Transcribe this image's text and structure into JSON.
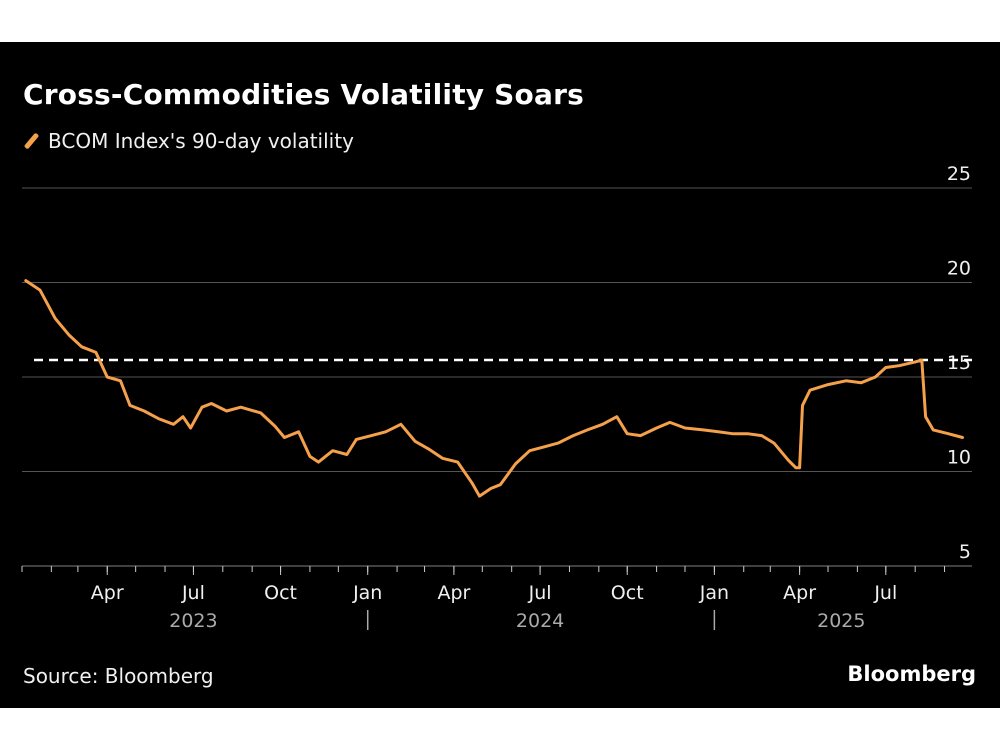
{
  "chart_data": {
    "type": "line",
    "title": "Cross-Commodities Volatility Soars",
    "legend": "BCOM Index's 90-day volatility",
    "ylim": [
      5,
      25
    ],
    "y_ticks": [
      5,
      10,
      15,
      20,
      25
    ],
    "x_range": [
      "2023-01-01",
      "2025-09-30"
    ],
    "x_month_ticks": [
      {
        "date": "2023-04-01",
        "label": "Apr"
      },
      {
        "date": "2023-07-01",
        "label": "Jul"
      },
      {
        "date": "2023-10-01",
        "label": "Oct"
      },
      {
        "date": "2024-01-01",
        "label": "Jan"
      },
      {
        "date": "2024-04-01",
        "label": "Apr"
      },
      {
        "date": "2024-07-01",
        "label": "Jul"
      },
      {
        "date": "2024-10-01",
        "label": "Oct"
      },
      {
        "date": "2025-01-01",
        "label": "Jan"
      },
      {
        "date": "2025-04-01",
        "label": "Apr"
      },
      {
        "date": "2025-07-01",
        "label": "Jul"
      }
    ],
    "x_year_labels": [
      {
        "date": "2023-07-01",
        "label": "2023"
      },
      {
        "date": "2024-07-01",
        "label": "2024"
      },
      {
        "date": "2025-05-15",
        "label": "2025"
      }
    ],
    "year_separators": [
      "2024-01-01",
      "2025-01-01"
    ],
    "reference_line": {
      "value": 15.9,
      "style": "dashed"
    },
    "grid": true,
    "series": [
      {
        "color": "#f5a04a",
        "points": [
          [
            "2023-01-05",
            20.1
          ],
          [
            "2023-01-20",
            19.6
          ],
          [
            "2023-02-05",
            18.1
          ],
          [
            "2023-02-20",
            17.2
          ],
          [
            "2023-03-05",
            16.6
          ],
          [
            "2023-03-20",
            16.3
          ],
          [
            "2023-04-01",
            15.0
          ],
          [
            "2023-04-15",
            14.8
          ],
          [
            "2023-04-25",
            13.5
          ],
          [
            "2023-05-10",
            13.2
          ],
          [
            "2023-05-25",
            12.8
          ],
          [
            "2023-06-10",
            12.5
          ],
          [
            "2023-06-20",
            12.9
          ],
          [
            "2023-06-28",
            12.3
          ],
          [
            "2023-07-10",
            13.4
          ],
          [
            "2023-07-20",
            13.6
          ],
          [
            "2023-08-05",
            13.2
          ],
          [
            "2023-08-20",
            13.4
          ],
          [
            "2023-09-10",
            13.1
          ],
          [
            "2023-09-25",
            12.4
          ],
          [
            "2023-10-05",
            11.8
          ],
          [
            "2023-10-20",
            12.1
          ],
          [
            "2023-11-01",
            10.8
          ],
          [
            "2023-11-10",
            10.5
          ],
          [
            "2023-11-25",
            11.1
          ],
          [
            "2023-12-10",
            10.9
          ],
          [
            "2023-12-20",
            11.7
          ],
          [
            "2024-01-05",
            11.9
          ],
          [
            "2024-01-20",
            12.1
          ],
          [
            "2024-02-05",
            12.5
          ],
          [
            "2024-02-20",
            11.6
          ],
          [
            "2024-03-05",
            11.2
          ],
          [
            "2024-03-20",
            10.7
          ],
          [
            "2024-04-05",
            10.5
          ],
          [
            "2024-04-20",
            9.4
          ],
          [
            "2024-04-28",
            8.7
          ],
          [
            "2024-05-10",
            9.1
          ],
          [
            "2024-05-20",
            9.3
          ],
          [
            "2024-06-05",
            10.4
          ],
          [
            "2024-06-20",
            11.1
          ],
          [
            "2024-07-05",
            11.3
          ],
          [
            "2024-07-20",
            11.5
          ],
          [
            "2024-08-05",
            11.9
          ],
          [
            "2024-08-20",
            12.2
          ],
          [
            "2024-09-05",
            12.5
          ],
          [
            "2024-09-20",
            12.9
          ],
          [
            "2024-10-01",
            12.0
          ],
          [
            "2024-10-15",
            11.9
          ],
          [
            "2024-11-01",
            12.3
          ],
          [
            "2024-11-15",
            12.6
          ],
          [
            "2024-12-01",
            12.3
          ],
          [
            "2024-12-20",
            12.2
          ],
          [
            "2025-01-05",
            12.1
          ],
          [
            "2025-01-20",
            12.0
          ],
          [
            "2025-02-05",
            12.0
          ],
          [
            "2025-02-20",
            11.9
          ],
          [
            "2025-03-05",
            11.5
          ],
          [
            "2025-03-20",
            10.6
          ],
          [
            "2025-03-28",
            10.2
          ],
          [
            "2025-04-01",
            10.2
          ],
          [
            "2025-04-04",
            13.5
          ],
          [
            "2025-04-12",
            14.3
          ],
          [
            "2025-05-01",
            14.6
          ],
          [
            "2025-05-20",
            14.8
          ],
          [
            "2025-06-05",
            14.7
          ],
          [
            "2025-06-20",
            15.0
          ],
          [
            "2025-07-01",
            15.5
          ],
          [
            "2025-07-15",
            15.6
          ],
          [
            "2025-08-01",
            15.8
          ],
          [
            "2025-08-08",
            15.9
          ],
          [
            "2025-08-12",
            12.9
          ],
          [
            "2025-08-20",
            12.2
          ],
          [
            "2025-09-05",
            12.0
          ],
          [
            "2025-09-20",
            11.8
          ]
        ]
      }
    ]
  },
  "source": "Source: Bloomberg",
  "brand": "Bloomberg",
  "colors": {
    "background": "#000000",
    "line": "#f5a04a",
    "grid": "#555555"
  }
}
